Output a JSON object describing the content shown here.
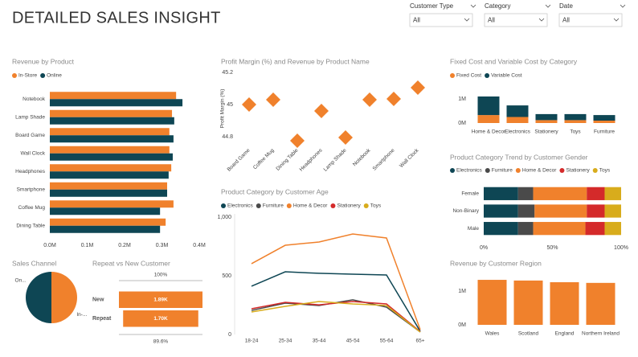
{
  "title": "DETAILED SALES INSIGHT",
  "filters": [
    {
      "label": "Customer Type",
      "value": "All"
    },
    {
      "label": "Category",
      "value": "All"
    },
    {
      "label": "Date",
      "value": "All"
    }
  ],
  "chart_data": [
    {
      "type": "bar",
      "orientation": "horizontal",
      "title": "Revenue by Product",
      "categories": [
        "Notebook",
        "Lamp Shade",
        "Board Game",
        "Wall Clock",
        "Headphones",
        "Smartphone",
        "Coffee Mug",
        "Dining Table"
      ],
      "series": [
        {
          "name": "In-Store",
          "color": "#f0812c",
          "values": [
            0.338,
            0.327,
            0.32,
            0.32,
            0.325,
            0.314,
            0.331,
            0.31
          ]
        },
        {
          "name": "Online",
          "color": "#0e4654",
          "values": [
            0.355,
            0.333,
            0.331,
            0.329,
            0.318,
            0.314,
            0.295,
            0.295
          ]
        }
      ],
      "xlim": [
        0,
        0.4
      ],
      "xticks": [
        {
          "value": 0,
          "label": "0.0M"
        },
        {
          "value": 0.1,
          "label": "0.1M"
        },
        {
          "value": 0.2,
          "label": "0.2M"
        },
        {
          "value": 0.3,
          "label": "0.3M"
        },
        {
          "value": 0.4,
          "label": "0.4M"
        }
      ]
    },
    {
      "type": "scatter",
      "title": "Profit Margin (%) and Revenue by Product Name",
      "y_label": "Profit Margin (%)",
      "marker": "diamond",
      "color": "#f0812c",
      "categories": [
        "Board Game",
        "Coffee Mug",
        "Dining Table",
        "Headphones",
        "Lamp Shade",
        "Notebook",
        "Smartphone",
        "Wall Clock"
      ],
      "values": [
        45.0,
        45.03,
        44.775,
        44.96,
        44.795,
        45.03,
        45.035,
        45.105
      ],
      "ylim": [
        44.75,
        45.2
      ],
      "yticks": [
        44.8,
        45.0,
        45.2
      ]
    },
    {
      "type": "bar",
      "stacked": true,
      "title": "Fixed Cost and Variable Cost by Category",
      "categories": [
        "Home & Decor",
        "Electronics",
        "Stationery",
        "Toys",
        "Furniture"
      ],
      "series": [
        {
          "name": "Fixed Cost",
          "color": "#f0812c",
          "values": [
            0.33,
            0.25,
            0.12,
            0.12,
            0.1
          ]
        },
        {
          "name": "Variable Cost",
          "color": "#0e4654",
          "values": [
            0.77,
            0.48,
            0.25,
            0.25,
            0.23
          ]
        }
      ],
      "ylim": [
        0,
        1.2
      ],
      "yticks": [
        {
          "value": 0,
          "label": "0M"
        },
        {
          "value": 1,
          "label": "1M"
        }
      ]
    },
    {
      "type": "bar",
      "orientation": "horizontal",
      "stacked": true,
      "title": "Product Category Trend by Customer Gender",
      "categories": [
        "Female",
        "Non-Binary",
        "Male"
      ],
      "series": [
        {
          "name": "Electronics",
          "color": "#0e4654",
          "values": [
            25,
            25,
            25
          ]
        },
        {
          "name": "Furniture",
          "color": "#4a4a4a",
          "values": [
            11,
            12,
            11
          ]
        },
        {
          "name": "Home & Decor",
          "color": "#f0812c",
          "values": [
            39,
            38,
            38
          ]
        },
        {
          "name": "Stationery",
          "color": "#d42a2a",
          "values": [
            13,
            13,
            14
          ]
        },
        {
          "name": "Toys",
          "color": "#d8ac1c",
          "values": [
            12,
            12,
            12
          ]
        }
      ],
      "xlim": [
        0,
        100
      ],
      "xticks": [
        {
          "value": 0,
          "label": "0%"
        },
        {
          "value": 50,
          "label": "50%"
        },
        {
          "value": 100,
          "label": "100%"
        }
      ]
    },
    {
      "type": "line",
      "title": "Product Category by Customer Age",
      "categories": [
        "18-24",
        "25-34",
        "35-44",
        "45-54",
        "55-64",
        "65+"
      ],
      "series": [
        {
          "name": "Electronics",
          "color": "#0e4654",
          "values": [
            411,
            534,
            521,
            514,
            507,
            27
          ]
        },
        {
          "name": "Furniture",
          "color": "#4a4a4a",
          "values": [
            205,
            267,
            247,
            295,
            233,
            21
          ]
        },
        {
          "name": "Home & Decor",
          "color": "#f0812c",
          "values": [
            603,
            760,
            788,
            856,
            822,
            41
          ]
        },
        {
          "name": "Stationery",
          "color": "#d42a2a",
          "values": [
            219,
            274,
            253,
            281,
            260,
            24
          ]
        },
        {
          "name": "Toys",
          "color": "#d8ac1c",
          "values": [
            192,
            240,
            281,
            260,
            247,
            21
          ]
        }
      ],
      "ylim": [
        0,
        1000
      ],
      "yticks": [
        0,
        500,
        {
          "value": 1000,
          "label": "1,000"
        }
      ]
    },
    {
      "type": "pie",
      "title": "Sales Channel",
      "categories": [
        "In-...",
        "On..."
      ],
      "values": [
        50,
        50
      ],
      "colors": [
        "#f0812c",
        "#0e4654"
      ]
    },
    {
      "type": "funnel",
      "title": "Repeat vs New Customer",
      "categories": [
        "New",
        "Repeat"
      ],
      "values": [
        1890,
        1700
      ],
      "value_labels": [
        "1.89K",
        "1.70K"
      ],
      "annotations": [
        "100%",
        "89.6%"
      ],
      "color": "#f0812c"
    },
    {
      "type": "bar",
      "title": "Revenue by Customer Region",
      "categories": [
        "Wales",
        "Scotland",
        "England",
        "Northern Ireland"
      ],
      "values": [
        1.33,
        1.31,
        1.26,
        1.24
      ],
      "color": "#f0812c",
      "ylim": [
        0,
        1.45
      ],
      "yticks": [
        {
          "value": 0,
          "label": "0M"
        },
        {
          "value": 1,
          "label": "1M"
        }
      ]
    }
  ]
}
